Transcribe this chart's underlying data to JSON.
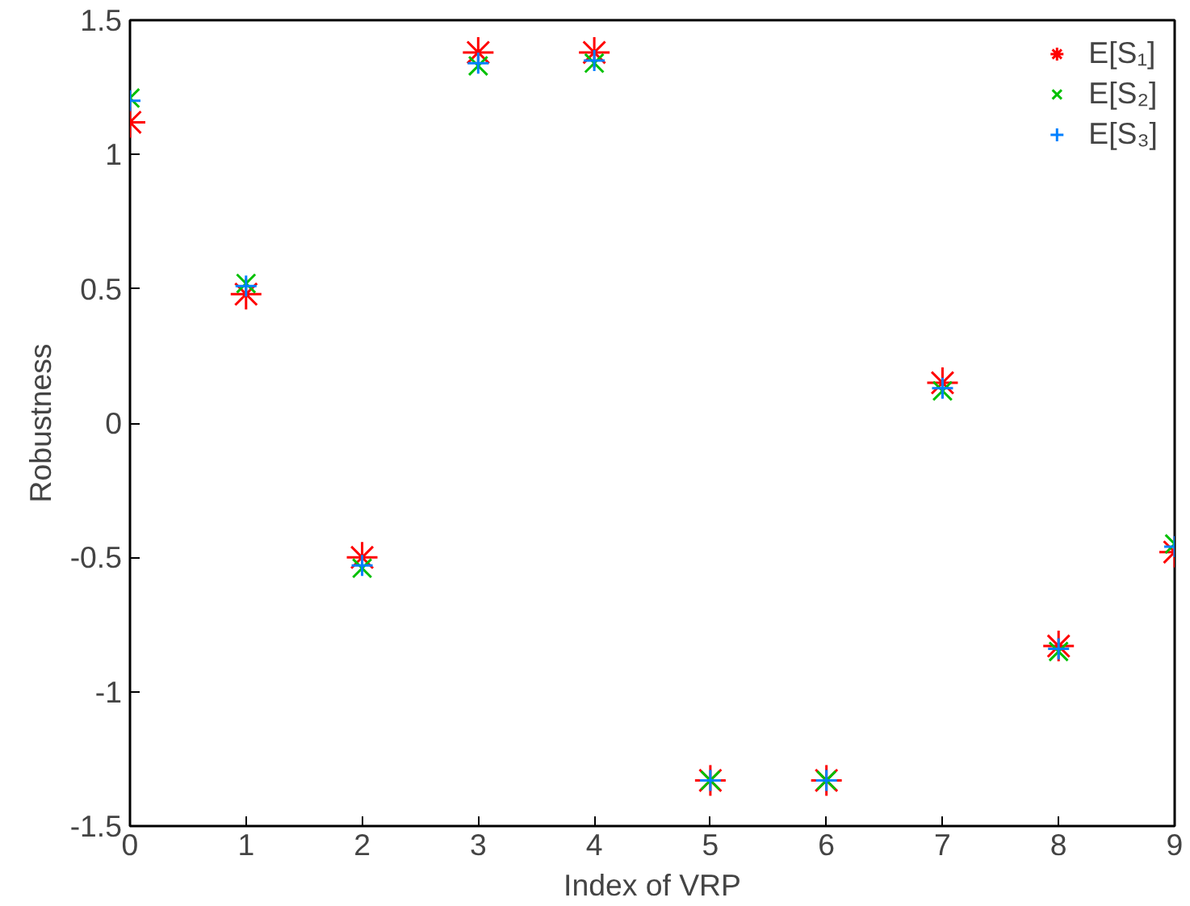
{
  "chart_data": {
    "type": "scatter",
    "xlabel": "Index of VRP",
    "ylabel": "Robustness",
    "x": [
      0,
      1,
      2,
      3,
      4,
      5,
      6,
      7,
      8,
      9
    ],
    "series": [
      {
        "name": "E[S₁]",
        "color": "#ff0000",
        "values": [
          1.12,
          0.48,
          -0.5,
          1.38,
          1.38,
          -1.33,
          -1.33,
          0.15,
          -0.83,
          -0.48
        ]
      },
      {
        "name": "E[S₂]",
        "color": "#00c000",
        "marker": "x",
        "values": [
          1.21,
          0.52,
          -0.54,
          1.33,
          1.34,
          -1.33,
          -1.33,
          0.12,
          -0.85,
          -0.45
        ]
      },
      {
        "name": "E[S₃]",
        "color": "#0080ff",
        "marker": "cross",
        "values": [
          1.2,
          0.51,
          -0.53,
          1.34,
          1.35,
          -1.33,
          -1.33,
          0.13,
          -0.84,
          -0.46
        ]
      }
    ],
    "xlim": [
      0,
      9
    ],
    "ylim": [
      -1.5,
      1.5
    ],
    "xticks": [
      0,
      1,
      2,
      3,
      4,
      5,
      6,
      7,
      8,
      9
    ],
    "yticks": [
      -1.5,
      -1,
      -0.5,
      0,
      0.5,
      1,
      1.5
    ],
    "grid": false,
    "legend": "top right"
  }
}
